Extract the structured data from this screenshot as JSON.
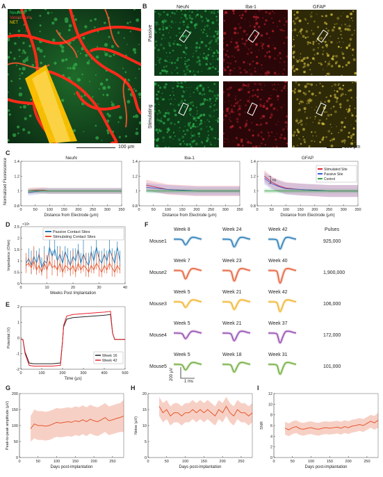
{
  "panel_letters": {
    "A": "A",
    "B": "B",
    "C": "C",
    "D": "D",
    "E": "E",
    "F": "F",
    "G": "G",
    "H": "H",
    "I": "I"
  },
  "panelA": {
    "legend": [
      "Neurons",
      "Vasculature",
      "NET"
    ],
    "legend_colors": [
      "#22cc55",
      "#ff3030",
      "#ffd000"
    ],
    "scale_label": "100 μm"
  },
  "panelB": {
    "columns": [
      "NeuN",
      "Iba-1",
      "GFAP"
    ],
    "rows": [
      "Passive",
      "Stimulating"
    ],
    "colors": [
      "#2aa84a",
      "#b0202a",
      "#c8b43a"
    ],
    "scale_label": "100 μm"
  },
  "panelC": {
    "ylabel": "Normalized Fluorescence",
    "xlabel": "Distance from Electrode (μm)",
    "legend": [
      "Stimulated Site",
      "Passive Site",
      "Control"
    ],
    "annotation": "ns",
    "chart_data": [
      {
        "type": "line",
        "title": "NeuN",
        "xlim": [
          0,
          350
        ],
        "ylim": [
          0.8,
          1.4
        ],
        "xticks": [
          0,
          50,
          100,
          150,
          200,
          250,
          300,
          350
        ],
        "yticks": [
          0.8,
          1,
          1.2,
          1.4
        ],
        "x": [
          25,
          50,
          75,
          100,
          150,
          200,
          250,
          300,
          350
        ],
        "series": [
          {
            "name": "Stimulated Site",
            "color": "#e6202a",
            "values": [
              1.0,
              1.01,
              1.01,
              1.0,
              1.0,
              1.0,
              1.0,
              1.0,
              1.0
            ],
            "band": 0.04
          },
          {
            "name": "Passive Site",
            "color": "#3a5bd0",
            "values": [
              0.98,
              0.99,
              1.0,
              1.0,
              1.0,
              1.0,
              1.0,
              1.0,
              1.0
            ],
            "band": 0.04
          },
          {
            "name": "Control",
            "color": "#2fa040",
            "values": [
              1.0,
              1.0,
              1.0,
              1.0,
              1.0,
              1.0,
              1.0,
              1.0,
              1.0
            ],
            "band": 0.03
          }
        ]
      },
      {
        "type": "line",
        "title": "Iba-1",
        "xlim": [
          0,
          350
        ],
        "ylim": [
          0.8,
          1.4
        ],
        "xticks": [
          0,
          50,
          100,
          150,
          200,
          250,
          300,
          350
        ],
        "yticks": [
          0.8,
          1,
          1.2,
          1.4
        ],
        "x": [
          25,
          50,
          75,
          100,
          150,
          200,
          250,
          300,
          350
        ],
        "series": [
          {
            "name": "Stimulated Site",
            "color": "#e6202a",
            "values": [
              1.08,
              1.06,
              1.04,
              1.02,
              1.01,
              1.0,
              1.0,
              1.0,
              1.0
            ],
            "band": 0.07
          },
          {
            "name": "Passive Site",
            "color": "#3a5bd0",
            "values": [
              1.05,
              1.04,
              1.03,
              1.02,
              1.01,
              1.0,
              1.0,
              1.0,
              1.0
            ],
            "band": 0.06
          },
          {
            "name": "Control",
            "color": "#2fa040",
            "values": [
              1.0,
              1.0,
              1.0,
              1.0,
              1.0,
              1.0,
              1.0,
              1.0,
              1.0
            ],
            "band": 0.03
          }
        ]
      },
      {
        "type": "line",
        "title": "GFAP",
        "xlim": [
          0,
          350
        ],
        "ylim": [
          0.8,
          1.4
        ],
        "xticks": [
          0,
          50,
          100,
          150,
          200,
          250,
          300,
          350
        ],
        "yticks": [
          0.8,
          1,
          1.2,
          1.4
        ],
        "x": [
          25,
          50,
          75,
          100,
          150,
          200,
          250,
          300,
          350
        ],
        "series": [
          {
            "name": "Stimulated Site",
            "color": "#e6202a",
            "values": [
              1.2,
              1.12,
              1.07,
              1.04,
              1.02,
              1.01,
              1.0,
              1.0,
              1.0
            ],
            "band": 0.08
          },
          {
            "name": "Passive Site",
            "color": "#3a5bd0",
            "values": [
              1.17,
              1.1,
              1.06,
              1.03,
              1.02,
              1.01,
              1.0,
              1.0,
              1.0
            ],
            "band": 0.08
          },
          {
            "name": "Control",
            "color": "#2fa040",
            "values": [
              1.0,
              1.0,
              1.0,
              1.0,
              1.0,
              1.0,
              1.0,
              1.0,
              1.0
            ],
            "band": 0.03
          }
        ]
      }
    ]
  },
  "panelD": {
    "ylabel": "Impedance (Ohm)",
    "xlabel": "Weeks Post Implantation",
    "exponent": "×10⁶",
    "chart_data": {
      "type": "line",
      "xlim": [
        0,
        40
      ],
      "ylim": [
        0,
        2.5
      ],
      "xticks": [
        0,
        10,
        20,
        30,
        40
      ],
      "yticks": [
        0,
        0.5,
        1,
        1.5,
        2,
        2.5
      ],
      "series": [
        {
          "name": "Passive Contact Sites",
          "color": "#1f77b4",
          "x": [
            2,
            3,
            4,
            5,
            6,
            7,
            8,
            9,
            10,
            11,
            12,
            13,
            14,
            15,
            16,
            17,
            18,
            19,
            20,
            21,
            22,
            23,
            24,
            25,
            26,
            27,
            28,
            29,
            30,
            31,
            32,
            33,
            34,
            35,
            36,
            37,
            38
          ],
          "values": [
            0.9,
            1.1,
            0.8,
            1.2,
            0.9,
            1.3,
            0.7,
            1.0,
            0.9,
            1.6,
            1.2,
            1.5,
            1.0,
            1.3,
            0.9,
            1.4,
            1.1,
            0.8,
            1.2,
            1.0,
            1.5,
            0.9,
            1.3,
            1.0,
            0.8,
            1.4,
            1.0,
            1.6,
            1.1,
            0.9,
            1.3,
            1.0,
            1.5,
            1.2,
            0.9,
            1.6,
            1.0
          ]
        },
        {
          "name": "Stimulating Contact Sites",
          "color": "#e4572e",
          "x": [
            2,
            3,
            4,
            5,
            6,
            7,
            8,
            9,
            10,
            11,
            12,
            13,
            14,
            15,
            16,
            17,
            18,
            19,
            20,
            21,
            22,
            23,
            24,
            25,
            26,
            27,
            28,
            29,
            30,
            31,
            32,
            33,
            34,
            35,
            36,
            37,
            38
          ],
          "values": [
            0.8,
            0.9,
            0.7,
            1.0,
            0.6,
            0.8,
            0.5,
            0.9,
            0.6,
            1.0,
            0.7,
            0.8,
            0.6,
            0.9,
            0.5,
            0.8,
            0.7,
            0.6,
            0.8,
            0.5,
            0.9,
            0.6,
            0.8,
            0.7,
            0.5,
            0.8,
            0.6,
            0.9,
            0.7,
            0.5,
            0.8,
            0.6,
            0.9,
            0.7,
            0.5,
            0.8,
            0.6
          ]
        }
      ]
    }
  },
  "panelE": {
    "ylabel": "Potential (V)",
    "xlabel": "Time (μs)",
    "chart_data": {
      "type": "line",
      "xlim": [
        0,
        500
      ],
      "ylim": [
        -2,
        2
      ],
      "xticks": [
        0,
        100,
        200,
        300,
        400,
        500
      ],
      "yticks": [
        -2,
        -1,
        0,
        1,
        2
      ],
      "series": [
        {
          "name": "Week 16",
          "color": "#222222",
          "x": [
            0,
            10,
            20,
            40,
            60,
            100,
            150,
            190,
            200,
            205,
            220,
            250,
            300,
            350,
            400,
            430,
            440,
            450,
            470,
            500
          ],
          "values": [
            -0.1,
            -0.1,
            -0.9,
            -1.6,
            -1.65,
            -1.65,
            -1.65,
            -1.6,
            -0.2,
            0.7,
            1.2,
            1.3,
            1.35,
            1.4,
            1.45,
            1.5,
            0.3,
            -0.1,
            -0.1,
            -0.1
          ]
        },
        {
          "name": "Week 42",
          "color": "#e6202a",
          "x": [
            0,
            10,
            20,
            40,
            60,
            100,
            150,
            190,
            200,
            205,
            220,
            250,
            300,
            350,
            400,
            430,
            440,
            450,
            470,
            500
          ],
          "values": [
            -0.1,
            -0.1,
            -1.0,
            -1.75,
            -1.8,
            -1.8,
            -1.8,
            -1.75,
            -0.2,
            0.8,
            1.4,
            1.5,
            1.55,
            1.6,
            1.65,
            1.7,
            0.3,
            -0.1,
            -0.1,
            -0.1
          ]
        }
      ]
    }
  },
  "panelF": {
    "pulses_header": "Pulses",
    "scale_v": "200 μV",
    "scale_t": "1 ms",
    "mice": [
      {
        "name": "Mouse1",
        "weeks": [
          "Week 8",
          "Week 24",
          "Week 42"
        ],
        "pulses": "925,000",
        "color": "#1f77b4"
      },
      {
        "name": "Mouse2",
        "weeks": [
          "Week 7",
          "Week 23",
          "Week 40"
        ],
        "pulses": "1,900,000",
        "color": "#e4572e"
      },
      {
        "name": "Mouse3",
        "weeks": [
          "Week 5",
          "Week 21",
          "Week 42"
        ],
        "pulses": "106,000",
        "color": "#f0b020"
      },
      {
        "name": "Mouse4",
        "weeks": [
          "Week 5",
          "Week 21",
          "Week 37"
        ],
        "pulses": "172,000",
        "color": "#8e44ad"
      },
      {
        "name": "Mouse5",
        "weeks": [
          "Week 5",
          "Week 18",
          "Week 31"
        ],
        "pulses": "101,000",
        "color": "#6aa832"
      }
    ]
  },
  "panelG": {
    "ylabel": "Peak-to-peak amplitude (μV)",
    "xlabel": "Days post-implantation",
    "chart_data": {
      "type": "line",
      "xlim": [
        0,
        280
      ],
      "ylim": [
        0,
        200
      ],
      "xticks": [
        0,
        50,
        100,
        150,
        200,
        250
      ],
      "yticks": [
        0,
        50,
        100,
        150,
        200
      ],
      "series": [
        {
          "color": "#e4572e",
          "x": [
            30,
            40,
            50,
            60,
            70,
            80,
            90,
            100,
            110,
            120,
            130,
            140,
            150,
            160,
            170,
            180,
            190,
            200,
            210,
            220,
            230,
            240,
            250,
            260,
            270,
            280
          ],
          "values": [
            90,
            105,
            100,
            100,
            98,
            100,
            105,
            110,
            108,
            110,
            112,
            110,
            115,
            112,
            118,
            112,
            120,
            115,
            112,
            118,
            125,
            115,
            118,
            122,
            125,
            130
          ],
          "band": [
            40,
            45,
            45,
            45,
            45,
            45,
            45,
            45,
            45,
            45,
            45,
            45,
            45,
            45,
            45,
            45,
            45,
            45,
            45,
            45,
            45,
            45,
            45,
            45,
            45,
            50
          ]
        }
      ]
    }
  },
  "panelH": {
    "ylabel": "Noise (μV)",
    "xlabel": "Days post-implantation",
    "chart_data": {
      "type": "line",
      "xlim": [
        0,
        280
      ],
      "ylim": [
        0,
        20
      ],
      "xticks": [
        0,
        50,
        100,
        150,
        200,
        250
      ],
      "yticks": [
        0,
        5,
        10,
        15,
        20
      ],
      "series": [
        {
          "color": "#e4572e",
          "x": [
            30,
            40,
            50,
            60,
            70,
            80,
            90,
            100,
            110,
            120,
            130,
            140,
            150,
            160,
            170,
            180,
            190,
            200,
            210,
            220,
            230,
            240,
            250,
            260,
            270,
            280
          ],
          "values": [
            16,
            14,
            15,
            13,
            14,
            14,
            13,
            14,
            14,
            15,
            14,
            15,
            14,
            15,
            14,
            13,
            15,
            14,
            16,
            14,
            13,
            15,
            14,
            14,
            13,
            14
          ],
          "band": [
            3,
            3,
            3,
            3,
            3,
            3,
            3,
            3,
            3,
            3,
            3,
            3,
            3,
            3,
            3,
            3,
            3,
            3,
            3,
            3,
            3,
            3,
            3,
            3,
            3,
            3
          ]
        }
      ]
    }
  },
  "panelI": {
    "ylabel": "SNR",
    "xlabel": "Days post-implantation",
    "chart_data": {
      "type": "line",
      "xlim": [
        0,
        280
      ],
      "ylim": [
        0,
        12
      ],
      "xticks": [
        0,
        50,
        100,
        150,
        200,
        250
      ],
      "yticks": [
        0,
        2,
        4,
        6,
        8,
        10,
        12
      ],
      "series": [
        {
          "color": "#e4572e",
          "x": [
            30,
            40,
            50,
            60,
            70,
            80,
            90,
            100,
            110,
            120,
            130,
            140,
            150,
            160,
            170,
            180,
            190,
            200,
            210,
            220,
            230,
            240,
            250,
            260,
            270,
            280
          ],
          "values": [
            5.5,
            5.2,
            5.6,
            5.8,
            5.4,
            5.3,
            5.5,
            5.6,
            5.4,
            5.3,
            5.5,
            5.6,
            5.5,
            5.6,
            5.7,
            5.5,
            5.8,
            5.6,
            5.9,
            6.0,
            6.2,
            6.0,
            6.4,
            6.8,
            6.5,
            7.0
          ],
          "band": [
            1.2,
            1.2,
            1.2,
            1.2,
            1.2,
            1.2,
            1.2,
            1.2,
            1.2,
            1.2,
            1.2,
            1.2,
            1.2,
            1.2,
            1.2,
            1.2,
            1.2,
            1.2,
            1.2,
            1.2,
            1.2,
            1.2,
            1.2,
            1.2,
            1.3,
            1.4
          ]
        }
      ]
    }
  }
}
